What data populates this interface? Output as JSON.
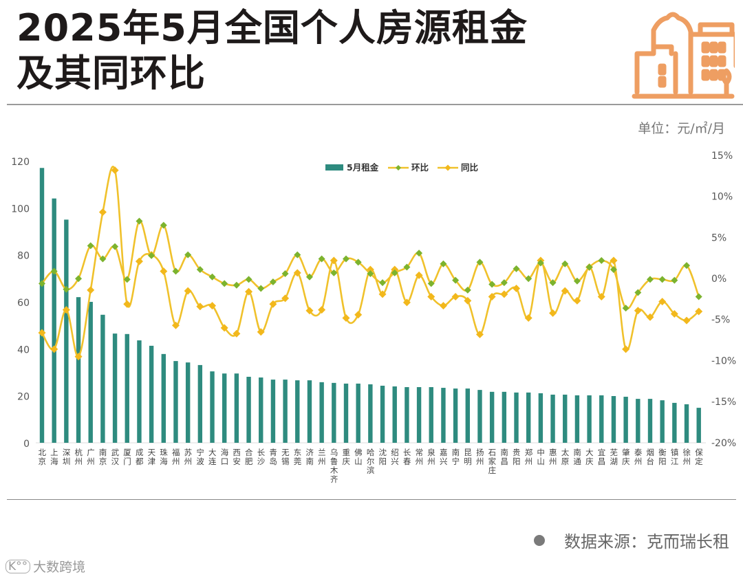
{
  "header": {
    "title_line1": "2025年5月全国个人房源租金",
    "title_line2": "及其同环比",
    "unit": "单位：元/㎡/月",
    "logo_icon": "city-buildings-icon"
  },
  "footer": {
    "source": "数据来源：克而瑞长租",
    "brand": "大数跨境",
    "brand_mark": "K°°"
  },
  "colors": {
    "bar": "#2e8b7f",
    "mom_line": "#f0c12b",
    "mom_marker": "#7cb32e",
    "yoy_line": "#f0c12b",
    "yoy_marker": "#f2b81c",
    "logo": "#ee9e62"
  },
  "chart_data": {
    "type": "bar+line",
    "title": "2025年5月全国个人房源租金及其同环比",
    "unit": "元/㎡/月",
    "legend": [
      "5月租金",
      "环比",
      "同比"
    ],
    "legend_position": "top-center",
    "grid": false,
    "left_axis": {
      "ylim": [
        0,
        120
      ],
      "ticks": [
        0,
        20,
        40,
        60,
        80,
        100,
        120
      ]
    },
    "right_axis": {
      "ylim": [
        -20,
        15
      ],
      "ticks": [
        "15%",
        "10%",
        "5%",
        "0%",
        "-5%",
        "-10%",
        "-15%",
        "-20%"
      ],
      "tick_values": [
        15,
        10,
        5,
        0,
        -5,
        -10,
        -15,
        -20
      ]
    },
    "categories": [
      "北京",
      "上海",
      "深圳",
      "杭州",
      "广州",
      "南京",
      "武汉",
      "厦门",
      "成都",
      "天津",
      "珠海",
      "福州",
      "苏州",
      "宁波",
      "大连",
      "海口",
      "西安",
      "合肥",
      "长沙",
      "青岛",
      "无锡",
      "东莞",
      "济南",
      "兰州",
      "乌鲁木齐",
      "重庆",
      "佛山",
      "哈尔滨",
      "沈阳",
      "绍兴",
      "长春",
      "常州",
      "泉州",
      "嘉兴",
      "南宁",
      "昆明",
      "扬州",
      "石家庄",
      "南昌",
      "贵阳",
      "郑州",
      "中山",
      "惠州",
      "太原",
      "南通",
      "大庆",
      "宜昌",
      "芜湖",
      "肇庆",
      "泰州",
      "烟台",
      "衡阳",
      "镇江",
      "徐州",
      "保定"
    ],
    "series": [
      {
        "name": "5月租金",
        "type": "bar",
        "axis": "left",
        "values": [
          117.0,
          104.0,
          95.0,
          62.0,
          60.0,
          54.5,
          46.5,
          46.3,
          43.6,
          41.3,
          37.8,
          34.8,
          34.2,
          33.1,
          30.4,
          29.5,
          29.5,
          28.1,
          27.8,
          26.9,
          26.9,
          26.6,
          26.6,
          25.8,
          25.5,
          25.2,
          25.2,
          24.9,
          24.3,
          24.0,
          23.7,
          23.7,
          23.7,
          23.4,
          23.1,
          23.1,
          22.5,
          21.7,
          21.7,
          21.4,
          21.4,
          21.1,
          20.5,
          20.5,
          20.2,
          20.2,
          20.2,
          19.9,
          19.6,
          18.7,
          18.7,
          18.1,
          17.0,
          16.4,
          14.9
        ]
      },
      {
        "name": "环比",
        "type": "line",
        "axis": "right",
        "unit": "%",
        "values": [
          -0.7,
          0.8,
          -1.4,
          -0.1,
          3.9,
          2.3,
          3.8,
          -0.2,
          6.9,
          2.7,
          6.4,
          0.8,
          2.8,
          1.0,
          0.1,
          -0.7,
          -0.9,
          -0.2,
          -1.3,
          -0.5,
          0.5,
          2.8,
          0.1,
          2.3,
          0.6,
          2.3,
          1.9,
          0.5,
          -0.6,
          0.6,
          1.3,
          3.0,
          -0.7,
          1.7,
          -0.3,
          -1.5,
          1.9,
          -0.8,
          -0.6,
          1.1,
          -0.1,
          1.8,
          -0.6,
          1.7,
          -0.4,
          1.3,
          2.1,
          1.0,
          -3.7,
          -1.8,
          -0.2,
          -0.2,
          -0.3,
          1.5,
          -2.3
        ]
      },
      {
        "name": "同比",
        "type": "line",
        "axis": "right",
        "unit": "%",
        "values": [
          -6.7,
          -8.7,
          -3.9,
          -9.6,
          -1.5,
          8.0,
          13.1,
          -3.2,
          2.0,
          2.8,
          0.8,
          -5.8,
          -1.6,
          -3.5,
          -3.4,
          -6.1,
          -6.8,
          -1.7,
          -6.6,
          -3.2,
          -2.5,
          0.6,
          -4.0,
          -3.9,
          2.1,
          -4.9,
          -4.5,
          1.0,
          -2.0,
          1.0,
          -3.0,
          0.3,
          -2.3,
          -3.4,
          -2.3,
          -2.8,
          -6.9,
          -2.3,
          -2.0,
          -1.3,
          -4.9,
          2.1,
          -4.3,
          -1.6,
          -2.8,
          1.3,
          -2.3,
          2.1,
          -8.7,
          -4.0,
          -4.8,
          -2.9,
          -4.4,
          -5.2,
          -4.1
        ]
      }
    ]
  }
}
